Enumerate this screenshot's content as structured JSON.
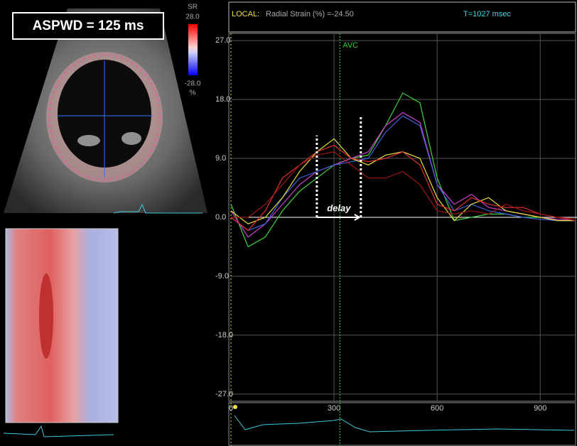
{
  "panel_label": "ASPWD = 125 ms",
  "colorbar": {
    "title": "SR",
    "ticks": [
      {
        "value": 28,
        "label": "28.0"
      },
      {
        "value": -28,
        "label": "-28.0"
      }
    ],
    "unit": "%"
  },
  "chart_data": {
    "type": "line",
    "header_label": "LOCAL:",
    "title": "Radial Strain (%) =-24.50",
    "time_label": "T=1027 msec",
    "avc": {
      "label": "AVC",
      "x": 317
    },
    "delay": {
      "label": "delay",
      "start": 250,
      "end": 378
    },
    "x": [
      0,
      50,
      100,
      150,
      200,
      250,
      300,
      350,
      400,
      450,
      500,
      550,
      600,
      650,
      700,
      750,
      800,
      850,
      900,
      950,
      1000
    ],
    "xlim": [
      0,
      1007
    ],
    "xticks": [
      0,
      300,
      600,
      900
    ],
    "ylim": [
      -28.1,
      28.1
    ],
    "yticks": [
      {
        "value": 27,
        "label": "27.0"
      },
      {
        "value": 18,
        "label": "18.0"
      },
      {
        "value": 9,
        "label": "9.0"
      },
      {
        "value": 0,
        "label": "0.0"
      },
      {
        "value": -9,
        "label": "-9.0"
      },
      {
        "value": -18,
        "label": "-18.0"
      },
      {
        "value": -27,
        "label": "-27.0"
      }
    ],
    "grid": true,
    "series": [
      {
        "color": "#3dd13d",
        "values": [
          2,
          -4.5,
          -3,
          1,
          4,
          6,
          8,
          9,
          9.5,
          14,
          19,
          17.5,
          6,
          -0.5,
          0,
          0.5,
          0.5,
          0,
          0,
          -0.5,
          -0.5
        ]
      },
      {
        "color": "#d040d0",
        "values": [
          1,
          -3,
          -1,
          2,
          5,
          7,
          8,
          9,
          10,
          14,
          16,
          14.5,
          5,
          2,
          3.5,
          1.5,
          1,
          0.5,
          0,
          -0.3,
          -0.5
        ]
      },
      {
        "color": "#4060e0",
        "values": [
          0,
          -2,
          -1,
          3,
          6,
          7,
          8,
          8.5,
          9,
          13,
          15.5,
          14,
          5,
          1,
          2,
          1,
          0.5,
          0,
          -0.3,
          -0.5,
          -0.5
        ]
      },
      {
        "color": "#e8e040",
        "values": [
          1,
          -1,
          0,
          3,
          7,
          10,
          12,
          9,
          8,
          9.5,
          10,
          9,
          3,
          -0.5,
          2,
          3,
          1,
          0.5,
          0,
          -0.5,
          -0.5
        ]
      },
      {
        "color": "#e03030",
        "values": [
          0,
          -2,
          1,
          6,
          8,
          10,
          11,
          9,
          8.5,
          9,
          10,
          8,
          2,
          1,
          3,
          2,
          1.5,
          1.5,
          0.5,
          0,
          -0.5
        ]
      },
      {
        "color": "#a01818",
        "values": [
          0,
          0,
          2,
          5,
          8,
          9.5,
          10,
          8,
          6,
          6,
          7,
          5,
          1,
          0.5,
          1,
          0.5,
          2,
          1,
          0.5,
          0,
          -0.2
        ]
      }
    ]
  }
}
